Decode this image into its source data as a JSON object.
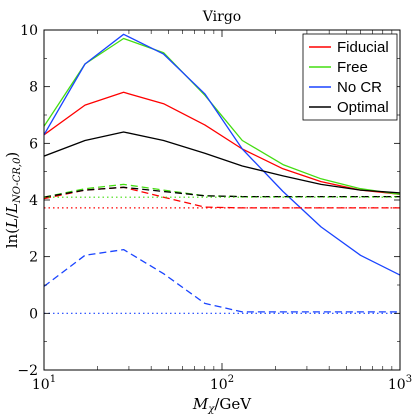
{
  "chart_data": {
    "type": "line",
    "title": "Virgo",
    "xlabel": "M_χ/GeV",
    "ylabel": "ln(L/L_NO-CR,0)",
    "xscale": "log",
    "xlim": [
      10,
      1000
    ],
    "ylim": [
      -2,
      10
    ],
    "x_ticks": [
      {
        "value": 10,
        "base": "10",
        "exp": "1"
      },
      {
        "value": 100,
        "base": "10",
        "exp": "2"
      },
      {
        "value": 1000,
        "base": "10",
        "exp": "3"
      }
    ],
    "y_ticks": [
      "−2",
      "0",
      "2",
      "4",
      "6",
      "8",
      "10"
    ],
    "y_tick_values": [
      -2,
      0,
      2,
      4,
      6,
      8,
      10
    ],
    "legend": {
      "position": "top-right",
      "entries": [
        {
          "label": "Fiducial",
          "color": "#ff0000"
        },
        {
          "label": "Free",
          "color": "#44dd11"
        },
        {
          "label": "No CR",
          "color": "#1a44ff"
        },
        {
          "label": "Optimal",
          "color": "#000000"
        }
      ]
    },
    "series": [
      {
        "name": "Fiducial",
        "color": "#ff0000",
        "style": "solid",
        "x": [
          10,
          17,
          28,
          47,
          80,
          130,
          220,
          360,
          600,
          1000
        ],
        "y": [
          6.3,
          7.35,
          7.8,
          7.4,
          6.65,
          5.8,
          5.1,
          4.65,
          4.35,
          4.2
        ]
      },
      {
        "name": "Free",
        "color": "#44dd11",
        "style": "solid",
        "x": [
          10,
          17,
          28,
          47,
          80,
          130,
          220,
          360,
          600,
          1000
        ],
        "y": [
          6.6,
          8.8,
          9.7,
          9.2,
          7.7,
          6.1,
          5.25,
          4.75,
          4.4,
          4.2
        ]
      },
      {
        "name": "No CR",
        "color": "#1a44ff",
        "style": "solid",
        "x": [
          10,
          17,
          28,
          47,
          80,
          130,
          220,
          360,
          600,
          1000
        ],
        "y": [
          6.3,
          8.8,
          9.85,
          9.15,
          7.75,
          5.8,
          4.3,
          3.05,
          2.05,
          1.35
        ]
      },
      {
        "name": "Optimal",
        "color": "#000000",
        "style": "solid",
        "x": [
          10,
          17,
          28,
          47,
          80,
          130,
          220,
          360,
          600,
          1000
        ],
        "y": [
          5.55,
          6.1,
          6.4,
          6.1,
          5.65,
          5.2,
          4.85,
          4.55,
          4.35,
          4.25
        ]
      },
      {
        "name": "Fiducial",
        "color": "#ff0000",
        "style": "dashed",
        "x": [
          10,
          17,
          28,
          47,
          80,
          130,
          220,
          360,
          600,
          1000
        ],
        "y": [
          4.05,
          4.35,
          4.45,
          4.1,
          3.75,
          3.72,
          3.72,
          3.72,
          3.72,
          3.72
        ]
      },
      {
        "name": "Free",
        "color": "#44dd11",
        "style": "dashed",
        "x": [
          10,
          17,
          28,
          47,
          80,
          130,
          220,
          360,
          600,
          1000
        ],
        "y": [
          4.1,
          4.4,
          4.55,
          4.35,
          4.15,
          4.12,
          4.12,
          4.12,
          4.12,
          4.12
        ]
      },
      {
        "name": "Optimal",
        "color": "#000000",
        "style": "dashed",
        "x": [
          10,
          17,
          28,
          47,
          80,
          130,
          220,
          360,
          600,
          1000
        ],
        "y": [
          4.1,
          4.35,
          4.45,
          4.3,
          4.15,
          4.12,
          4.12,
          4.12,
          4.12,
          4.12
        ]
      },
      {
        "name": "No CR",
        "color": "#1a44ff",
        "style": "dashed",
        "x": [
          10,
          17,
          28,
          47,
          80,
          130,
          220,
          360,
          600,
          1000
        ],
        "y": [
          0.95,
          2.05,
          2.25,
          1.4,
          0.35,
          0.05,
          0.05,
          0.05,
          0.05,
          0.05
        ]
      },
      {
        "name": "Fiducial",
        "color": "#ff0000",
        "style": "dotted",
        "x": [
          10,
          1000
        ],
        "y": [
          3.72,
          3.72
        ]
      },
      {
        "name": "Free",
        "color": "#44dd11",
        "style": "dotted",
        "x": [
          10,
          1000
        ],
        "y": [
          4.1,
          4.1
        ]
      },
      {
        "name": "No CR",
        "color": "#1a44ff",
        "style": "dotted",
        "x": [
          10,
          1000
        ],
        "y": [
          0.0,
          0.0
        ]
      }
    ]
  }
}
